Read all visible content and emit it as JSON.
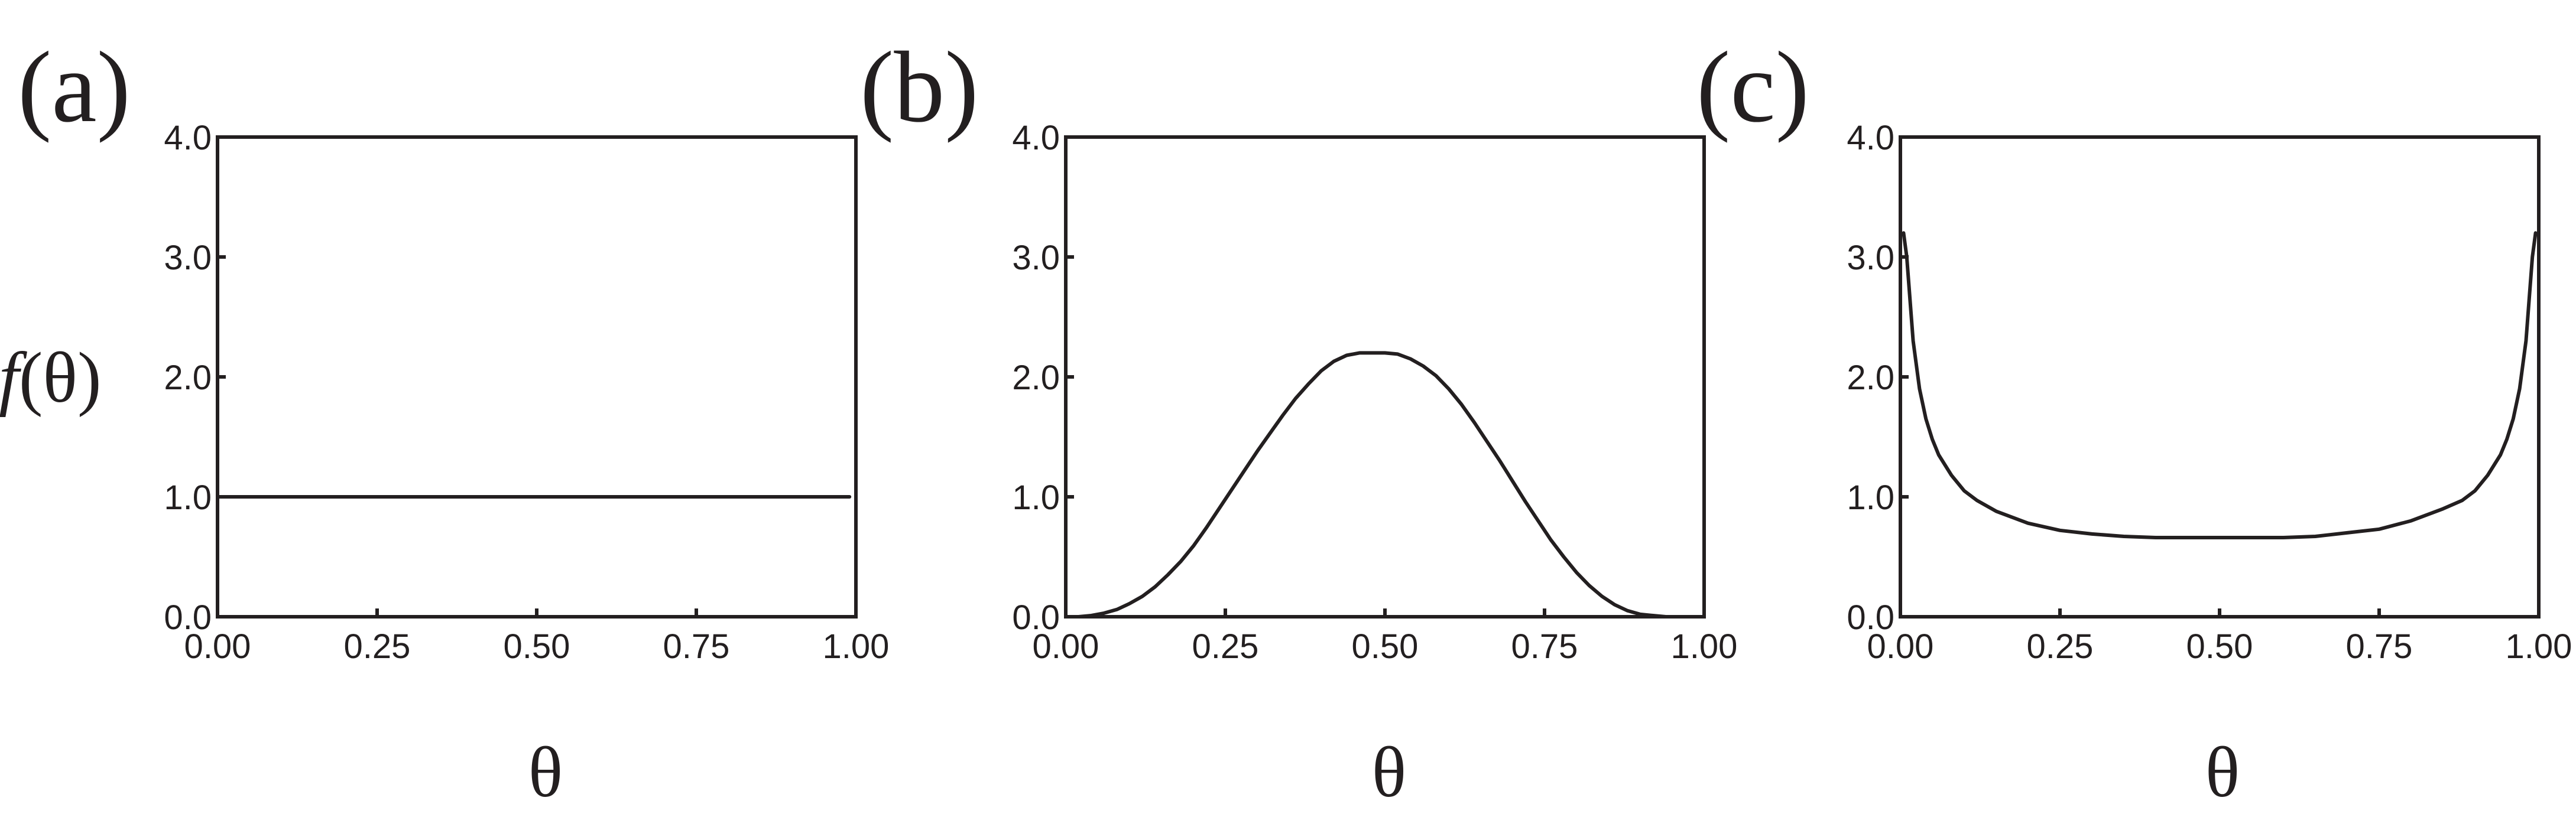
{
  "chart_data": [
    {
      "type": "line",
      "panel_label": "(a)",
      "xlabel": "θ",
      "ylabel": "f(θ)",
      "ylabel_italic_part": "f",
      "ylabel_rest": "(θ)",
      "xlim": [
        0,
        1
      ],
      "ylim": [
        0,
        4
      ],
      "xticks": [
        0,
        0.25,
        0.5,
        0.75,
        1
      ],
      "xtick_labels": [
        "0.00",
        "0.25",
        "0.50",
        "0.75",
        "1.00"
      ],
      "yticks": [
        0,
        1,
        2,
        3,
        4
      ],
      "ytick_labels": [
        "0.0",
        "1.0",
        "2.0",
        "3.0",
        "4.0"
      ],
      "grid": false,
      "series": [
        {
          "x": [
            0.0,
            0.99
          ],
          "y": [
            1.0,
            1.0
          ]
        }
      ]
    },
    {
      "type": "line",
      "panel_label": "(b)",
      "xlabel": "θ",
      "xlim": [
        0,
        1
      ],
      "ylim": [
        0,
        4
      ],
      "xticks": [
        0,
        0.25,
        0.5,
        0.75,
        1
      ],
      "xtick_labels": [
        "0.00",
        "0.25",
        "0.50",
        "0.75",
        "1.00"
      ],
      "yticks": [
        0,
        1,
        2,
        3,
        4
      ],
      "ytick_labels": [
        "0.0",
        "1.0",
        "2.0",
        "3.0",
        "4.0"
      ],
      "grid": false,
      "series": [
        {
          "x": [
            0.0,
            0.02,
            0.04,
            0.06,
            0.08,
            0.1,
            0.12,
            0.14,
            0.16,
            0.18,
            0.2,
            0.22,
            0.24,
            0.26,
            0.28,
            0.3,
            0.32,
            0.34,
            0.36,
            0.38,
            0.4,
            0.42,
            0.44,
            0.46,
            0.48,
            0.5,
            0.52,
            0.54,
            0.56,
            0.58,
            0.6,
            0.62,
            0.64,
            0.66,
            0.68,
            0.7,
            0.72,
            0.74,
            0.76,
            0.78,
            0.8,
            0.82,
            0.84,
            0.86,
            0.88,
            0.9,
            0.92,
            0.94,
            0.96,
            0.98,
            1.0
          ],
          "y": [
            0.0,
            0.0,
            0.01,
            0.03,
            0.06,
            0.11,
            0.17,
            0.25,
            0.35,
            0.46,
            0.59,
            0.74,
            0.9,
            1.06,
            1.22,
            1.38,
            1.53,
            1.68,
            1.82,
            1.94,
            2.05,
            2.13,
            2.18,
            2.2,
            2.2,
            2.2,
            2.19,
            2.15,
            2.09,
            2.01,
            1.9,
            1.77,
            1.62,
            1.46,
            1.3,
            1.13,
            0.96,
            0.8,
            0.64,
            0.5,
            0.37,
            0.26,
            0.17,
            0.1,
            0.05,
            0.02,
            0.01,
            0.0,
            0.0,
            0.0,
            0.0
          ]
        }
      ]
    },
    {
      "type": "line",
      "panel_label": "(c)",
      "xlabel": "θ",
      "xlim": [
        0,
        1
      ],
      "ylim": [
        0,
        4
      ],
      "xticks": [
        0,
        0.25,
        0.5,
        0.75,
        1
      ],
      "xtick_labels": [
        "0.00",
        "0.25",
        "0.50",
        "0.75",
        "1.00"
      ],
      "yticks": [
        0,
        1,
        2,
        3,
        4
      ],
      "ytick_labels": [
        "0.0",
        "1.0",
        "2.0",
        "3.0",
        "4.0"
      ],
      "grid": false,
      "series": [
        {
          "x": [
            0.005,
            0.01,
            0.02,
            0.03,
            0.04,
            0.05,
            0.06,
            0.08,
            0.1,
            0.12,
            0.15,
            0.2,
            0.25,
            0.3,
            0.35,
            0.4,
            0.45,
            0.5,
            0.55,
            0.6,
            0.65,
            0.7,
            0.75,
            0.8,
            0.85,
            0.88,
            0.9,
            0.92,
            0.94,
            0.95,
            0.96,
            0.97,
            0.98,
            0.99,
            0.995
          ],
          "y": [
            3.2,
            3.0,
            2.3,
            1.9,
            1.65,
            1.48,
            1.35,
            1.18,
            1.05,
            0.97,
            0.88,
            0.78,
            0.72,
            0.69,
            0.67,
            0.66,
            0.66,
            0.66,
            0.66,
            0.66,
            0.67,
            0.7,
            0.73,
            0.8,
            0.9,
            0.97,
            1.05,
            1.18,
            1.35,
            1.48,
            1.65,
            1.9,
            2.3,
            3.0,
            3.2
          ]
        }
      ]
    }
  ]
}
